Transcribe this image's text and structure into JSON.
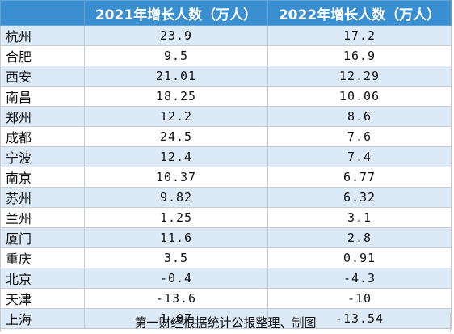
{
  "chart_data": {
    "type": "table",
    "columns": [
      "",
      "2021年增长人数（万人）",
      "2022年增长人数（万人）"
    ],
    "categories": [
      "杭州",
      "合肥",
      "西安",
      "南昌",
      "郑州",
      "成都",
      "宁波",
      "南京",
      "苏州",
      "兰州",
      "厦门",
      "重庆",
      "北京",
      "天津",
      "上海"
    ],
    "series": [
      {
        "name": "2021年增长人数（万人）",
        "values": [
          "23.9",
          "9.5",
          "21.01",
          "18.25",
          "12.2",
          "24.5",
          "12.4",
          "10.37",
          "9.82",
          "1.25",
          "11.6",
          "3.5",
          "-0.4",
          "-13.6",
          "1.07"
        ]
      },
      {
        "name": "2022年增长人数（万人）",
        "values": [
          "17.2",
          "16.9",
          "12.29",
          "10.06",
          "8.6",
          "7.6",
          "7.4",
          "6.77",
          "6.32",
          "3.1",
          "2.8",
          "0.91",
          "-4.3",
          "-10",
          "-13.54"
        ]
      }
    ],
    "source_note": "第一财经根据统计公报整理、制图"
  },
  "colors": {
    "header_bg": "#3a8fd0",
    "header_text": "#ffffff",
    "band_row": "#dce9f6",
    "plain_row": "#ffffff"
  }
}
